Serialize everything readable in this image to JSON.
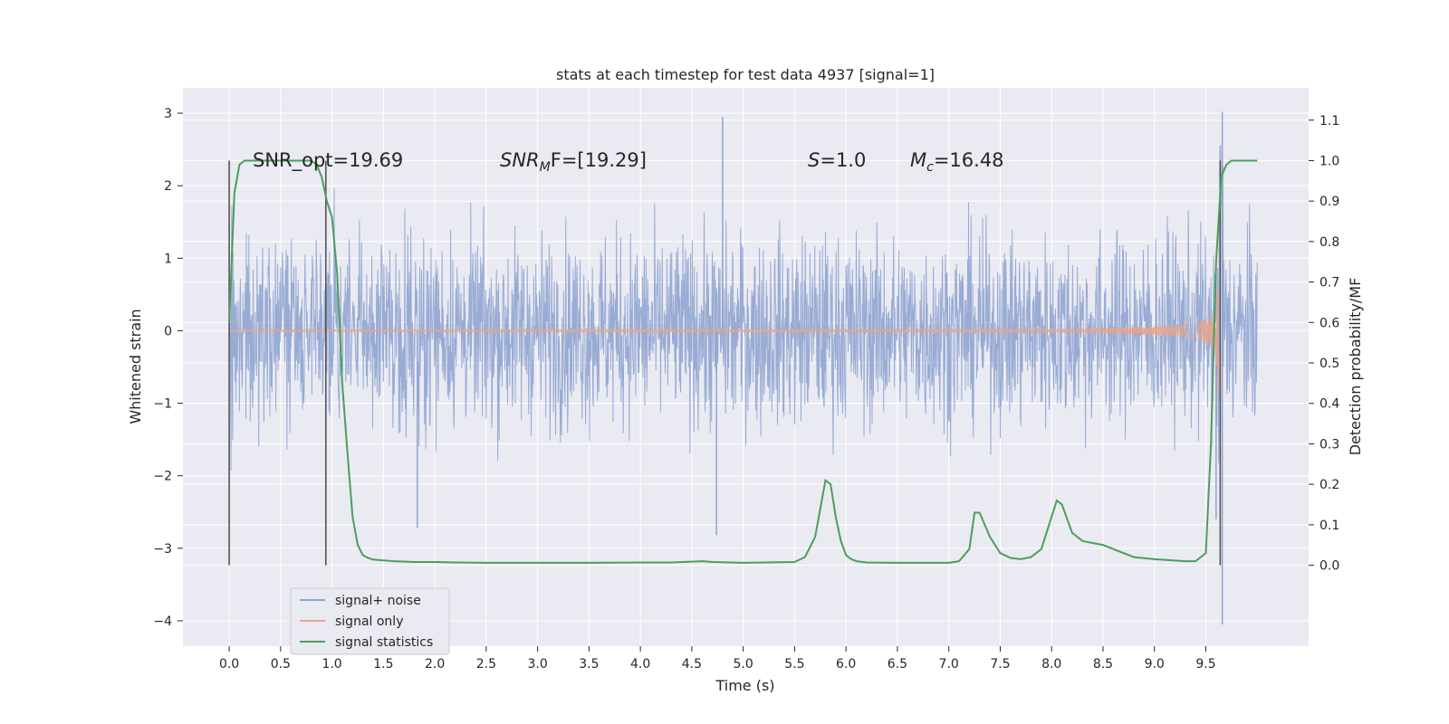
{
  "chart_data": {
    "type": "line",
    "title": "stats at each timestep for test data 4937 [signal=1]",
    "xlabel": "Time (s)",
    "ylabel_left": "Whitened strain",
    "ylabel_right": "Detection probability/MF",
    "xlim": [
      -0.45,
      10.5
    ],
    "ylim_left": [
      -4.35,
      3.35
    ],
    "ylim_right": [
      -0.2,
      1.18
    ],
    "xticks": [
      0.0,
      0.5,
      1.0,
      1.5,
      2.0,
      2.5,
      3.0,
      3.5,
      4.0,
      4.5,
      5.0,
      5.5,
      6.0,
      6.5,
      7.0,
      7.5,
      8.0,
      8.5,
      9.0,
      9.5
    ],
    "xtick_labels": [
      "0.0",
      "0.5",
      "1.0",
      "1.5",
      "2.0",
      "2.5",
      "3.0",
      "3.5",
      "4.0",
      "4.5",
      "5.0",
      "5.5",
      "6.0",
      "6.5",
      "7.0",
      "7.5",
      "8.0",
      "8.5",
      "9.0",
      "9.5"
    ],
    "yticks_left": [
      -4,
      -3,
      -2,
      -1,
      0,
      1,
      2,
      3
    ],
    "ytick_labels_left": [
      "−4",
      "−3",
      "−2",
      "−1",
      "0",
      "1",
      "2",
      "3"
    ],
    "yticks_right": [
      0.0,
      0.1,
      0.2,
      0.3,
      0.4,
      0.5,
      0.6,
      0.7,
      0.8,
      0.9,
      1.0,
      1.1
    ],
    "ytick_labels_right": [
      "0.0",
      "0.1",
      "0.2",
      "0.3",
      "0.4",
      "0.5",
      "0.6",
      "0.7",
      "0.8",
      "0.9",
      "1.0",
      "1.1"
    ],
    "grid": true,
    "legend_placement": "lower-left",
    "annotations": {
      "snr_opt": "SNR_opt=19.69",
      "snr_mf_main": "SNR",
      "snr_mf_sub": "M",
      "snr_mf_rest": "F=[19.29]",
      "s_label": "S",
      "s_value": "=1.0",
      "mc_label": "M",
      "mc_sub": "c",
      "mc_value": "=16.48"
    },
    "vertical_markers_x": [
      0.0,
      0.94,
      9.64
    ],
    "vertical_markers_range_right": [
      0.0,
      1.0
    ],
    "series": [
      {
        "name": "signal+ noise",
        "color": "#8fa4d0",
        "axis": "left",
        "t_range": [
          0.0,
          10.0
        ],
        "envelope_mid": 0.0,
        "peaks": [
          {
            "t": 4.8,
            "v": 2.95
          },
          {
            "t": 1.83,
            "v": -2.72
          },
          {
            "t": 4.74,
            "v": -2.82
          },
          {
            "t": 9.66,
            "v": 3.02
          },
          {
            "t": 9.66,
            "v": -4.05
          },
          {
            "t": 9.6,
            "v": -2.6
          }
        ]
      },
      {
        "name": "signal only",
        "color": "#e8a58c",
        "axis": "left",
        "t_merger": 9.64,
        "amplitude_at_merger": 2.9
      },
      {
        "name": "signal statistics",
        "color": "#4c9e5a",
        "axis": "right",
        "x": [
          0.0,
          0.05,
          0.1,
          0.15,
          0.2,
          0.3,
          0.4,
          0.5,
          0.6,
          0.7,
          0.8,
          0.85,
          0.9,
          0.95,
          1.0,
          1.05,
          1.1,
          1.15,
          1.2,
          1.25,
          1.3,
          1.35,
          1.4,
          1.5,
          1.6,
          1.8,
          2.0,
          2.2,
          2.5,
          3.0,
          3.5,
          4.0,
          4.3,
          4.5,
          4.6,
          4.7,
          5.0,
          5.5,
          5.6,
          5.7,
          5.8,
          5.85,
          5.9,
          5.95,
          6.0,
          6.05,
          6.1,
          6.2,
          6.5,
          7.0,
          7.1,
          7.2,
          7.25,
          7.3,
          7.4,
          7.5,
          7.6,
          7.7,
          7.8,
          7.9,
          8.0,
          8.05,
          8.1,
          8.2,
          8.3,
          8.4,
          8.5,
          8.6,
          8.7,
          8.8,
          9.0,
          9.3,
          9.4,
          9.45,
          9.5,
          9.55,
          9.6,
          9.65,
          9.7,
          9.75,
          9.8,
          9.9,
          10.0
        ],
        "values": [
          0.6,
          0.92,
          0.99,
          1.0,
          1.0,
          1.0,
          1.0,
          1.0,
          1.0,
          1.0,
          1.0,
          0.99,
          0.96,
          0.9,
          0.86,
          0.72,
          0.45,
          0.28,
          0.12,
          0.05,
          0.025,
          0.018,
          0.014,
          0.012,
          0.01,
          0.008,
          0.008,
          0.007,
          0.006,
          0.006,
          0.006,
          0.007,
          0.007,
          0.009,
          0.01,
          0.008,
          0.006,
          0.008,
          0.02,
          0.07,
          0.21,
          0.2,
          0.12,
          0.06,
          0.025,
          0.015,
          0.01,
          0.007,
          0.006,
          0.006,
          0.01,
          0.04,
          0.13,
          0.13,
          0.07,
          0.03,
          0.018,
          0.015,
          0.02,
          0.04,
          0.12,
          0.16,
          0.15,
          0.08,
          0.06,
          0.055,
          0.05,
          0.04,
          0.03,
          0.02,
          0.015,
          0.01,
          0.01,
          0.02,
          0.03,
          0.3,
          0.75,
          0.96,
          0.99,
          1.0,
          1.0,
          1.0,
          1.0
        ]
      }
    ]
  }
}
